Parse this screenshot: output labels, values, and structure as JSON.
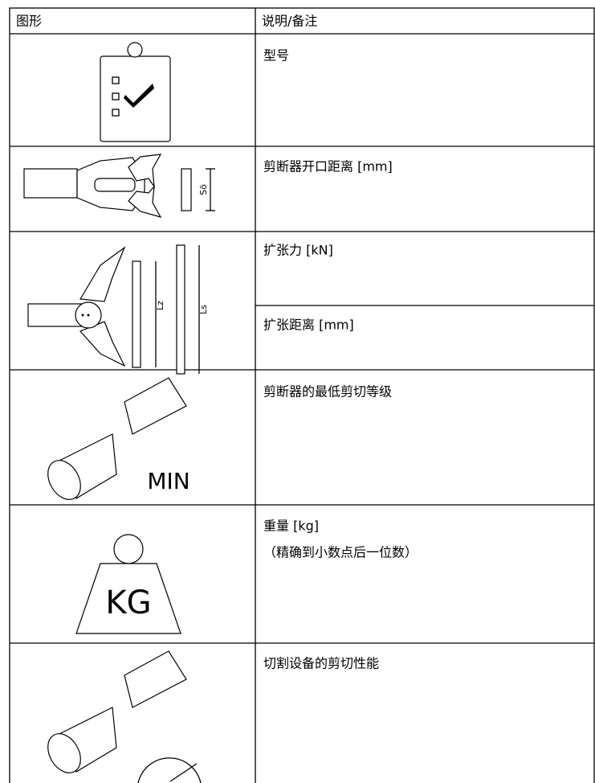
{
  "table": {
    "header": [
      "图形",
      "说明/备注"
    ],
    "rows": [
      {
        "descriptions": [
          "型号"
        ]
      },
      {
        "icon_labels": [
          "Sö"
        ],
        "descriptions": [
          "剪断器开口距离 [mm]"
        ]
      },
      {
        "icon_labels": [
          "Lz",
          "Ls"
        ],
        "descriptions": [
          "扩张力 [kN]",
          "扩张距离 [mm]"
        ]
      },
      {
        "icon_labels": [
          "MIN"
        ],
        "descriptions": [
          "剪断器的最低剪切等级"
        ]
      },
      {
        "icon_labels": [
          "KG"
        ],
        "descriptions": [
          "重量 [kg]"
        ],
        "note": "（精确到小数点后一位数）"
      },
      {
        "descriptions": [
          "切割设备的剪切性能"
        ]
      }
    ]
  }
}
